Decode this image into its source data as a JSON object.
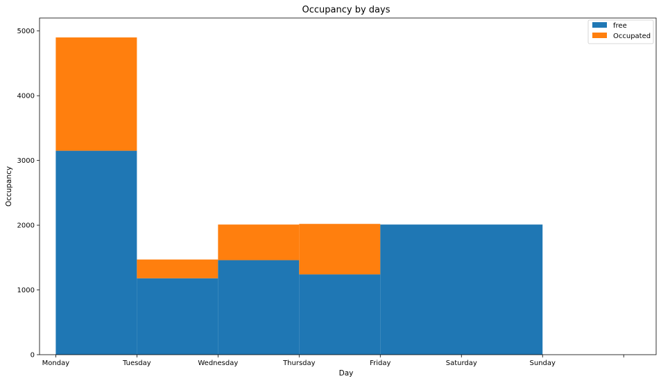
{
  "chart_data": {
    "type": "bar",
    "title": "Occupancy by days",
    "xlabel": "Day",
    "ylabel": "Occupancy",
    "ylim": [
      0,
      5200
    ],
    "yticks": [
      0,
      1000,
      2000,
      3000,
      4000,
      5000
    ],
    "xticks": [
      "Monday",
      "Tuesday",
      "Wednesday",
      "Thursday",
      "Friday",
      "Saturday",
      "Sunday",
      "",
      ""
    ],
    "bars": [
      {
        "from": 0,
        "to": 1,
        "free": 3150,
        "occupated": 1750
      },
      {
        "from": 1,
        "to": 2,
        "free": 1180,
        "occupated": 290
      },
      {
        "from": 2,
        "to": 3,
        "free": 1460,
        "occupated": 550
      },
      {
        "from": 3,
        "to": 4,
        "free": 1240,
        "occupated": 780
      },
      {
        "from": 4,
        "to": 6,
        "free": 2010,
        "occupated": 0
      }
    ],
    "xlim": [
      -0.2,
      7.4
    ],
    "grid": false,
    "legend_position": "top-right",
    "series": [
      {
        "name": "free",
        "color": "#1f77b4"
      },
      {
        "name": "Occupated",
        "color": "#ff7f0e"
      }
    ]
  }
}
